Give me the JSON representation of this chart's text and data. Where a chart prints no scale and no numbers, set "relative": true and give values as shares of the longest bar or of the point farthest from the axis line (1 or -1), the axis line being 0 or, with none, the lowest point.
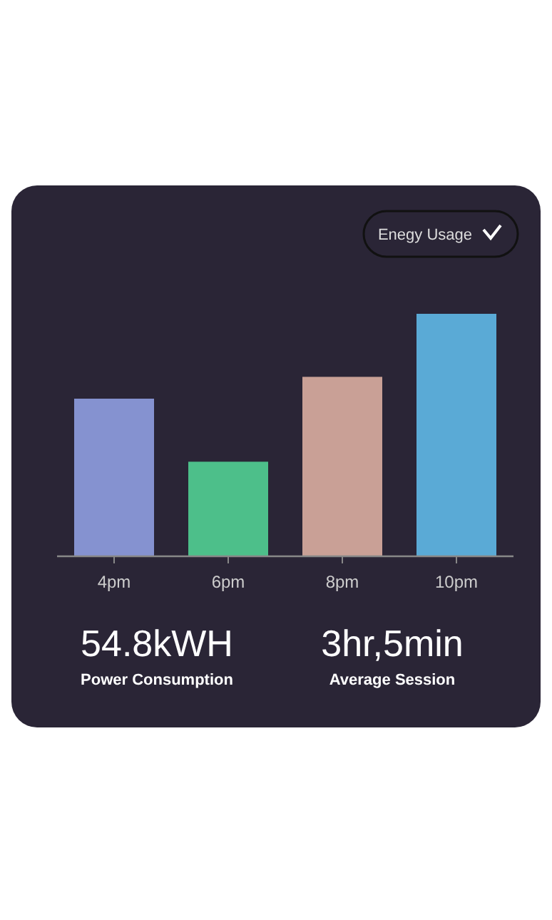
{
  "chart_data": {
    "type": "bar",
    "title": "Enegy Usage",
    "relative": true,
    "categories": [
      "4pm",
      "6pm",
      "8pm",
      "10pm"
    ],
    "values": [
      0.65,
      0.39,
      0.74,
      1
    ],
    "colors": [
      "#8592d0",
      "#4dbf8a",
      "#c9a096",
      "#5aaad6"
    ],
    "annotations": [
      "54.8kWH",
      "Power Consumption",
      "3hr,5min",
      "Average Session"
    ]
  }
}
